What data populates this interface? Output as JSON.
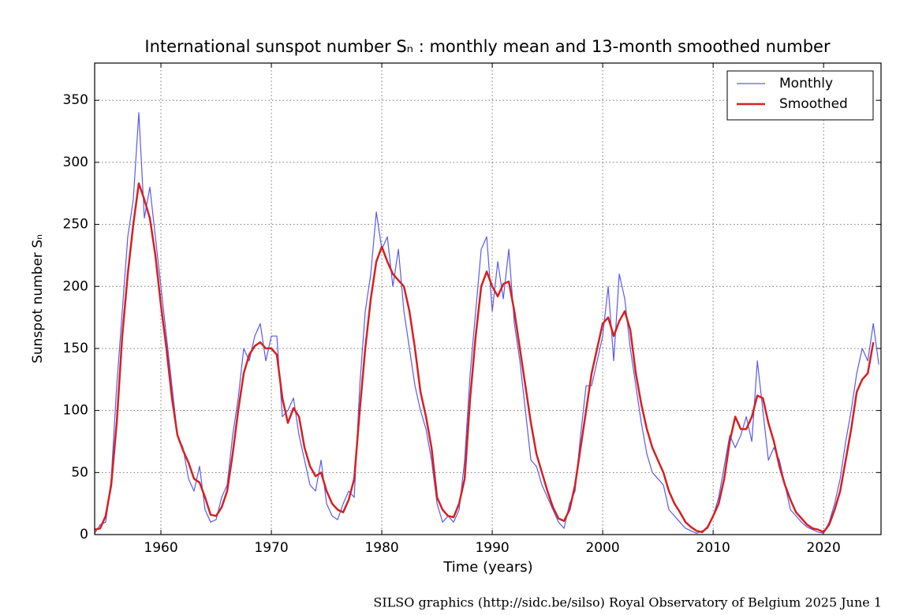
{
  "chart_data": {
    "type": "line",
    "title": "International sunspot number Sₙ : monthly mean and 13-month smoothed number",
    "xlabel": "Time (years)",
    "ylabel": "Sunspot number Sₙ",
    "footer": "SILSO graphics (http://sidc.be/silso)  Royal Observatory of Belgium  2025 June 1",
    "xlim": [
      1954,
      2025.2
    ],
    "ylim": [
      0,
      380
    ],
    "xticks": [
      1960,
      1970,
      1980,
      1990,
      2000,
      2010,
      2020
    ],
    "yticks": [
      0,
      50,
      100,
      150,
      200,
      250,
      300,
      350
    ],
    "grid": true,
    "legend": "upper right",
    "x": [
      1954,
      1954.5,
      1955,
      1955.5,
      1956,
      1956.5,
      1957,
      1957.5,
      1958,
      1958.5,
      1959,
      1959.5,
      1960,
      1960.5,
      1961,
      1961.5,
      1962,
      1962.5,
      1963,
      1963.5,
      1964,
      1964.5,
      1965,
      1965.5,
      1966,
      1966.5,
      1967,
      1967.5,
      1968,
      1968.5,
      1969,
      1969.5,
      1970,
      1970.5,
      1971,
      1971.5,
      1972,
      1972.5,
      1973,
      1973.5,
      1974,
      1974.5,
      1975,
      1975.5,
      1976,
      1976.5,
      1977,
      1977.5,
      1978,
      1978.5,
      1979,
      1979.5,
      1980,
      1980.5,
      1981,
      1981.5,
      1982,
      1982.5,
      1983,
      1983.5,
      1984,
      1984.5,
      1985,
      1985.5,
      1986,
      1986.5,
      1987,
      1987.5,
      1988,
      1988.5,
      1989,
      1989.5,
      1990,
      1990.5,
      1991,
      1991.5,
      1992,
      1992.5,
      1993,
      1993.5,
      1994,
      1994.5,
      1995,
      1995.5,
      1996,
      1996.5,
      1997,
      1997.5,
      1998,
      1998.5,
      1999,
      1999.5,
      2000,
      2000.5,
      2001,
      2001.5,
      2002,
      2002.5,
      2003,
      2003.5,
      2004,
      2004.5,
      2005,
      2005.5,
      2006,
      2006.5,
      2007,
      2007.5,
      2008,
      2008.5,
      2009,
      2009.5,
      2010,
      2010.5,
      2011,
      2011.5,
      2012,
      2012.5,
      2013,
      2013.5,
      2014,
      2014.5,
      2015,
      2015.5,
      2016,
      2016.5,
      2017,
      2017.5,
      2018,
      2018.5,
      2019,
      2019.5,
      2020,
      2020.5,
      2021,
      2021.5,
      2022,
      2022.5,
      2023,
      2023.5,
      2024,
      2024.5,
      2025
    ],
    "series": [
      {
        "name": "Monthly",
        "color": "#5a5aee",
        "width": 1.2,
        "values": [
          1,
          8,
          10,
          45,
          120,
          180,
          240,
          270,
          340,
          255,
          280,
          240,
          200,
          160,
          120,
          80,
          70,
          45,
          35,
          55,
          20,
          10,
          12,
          30,
          40,
          80,
          110,
          150,
          140,
          160,
          170,
          140,
          160,
          160,
          95,
          100,
          110,
          80,
          60,
          40,
          35,
          60,
          25,
          15,
          12,
          25,
          35,
          30,
          120,
          180,
          210,
          260,
          230,
          240,
          200,
          230,
          180,
          150,
          120,
          100,
          85,
          60,
          25,
          10,
          15,
          10,
          20,
          60,
          130,
          180,
          230,
          240,
          180,
          220,
          190,
          230,
          170,
          140,
          100,
          60,
          55,
          40,
          30,
          20,
          10,
          5,
          25,
          35,
          80,
          120,
          120,
          140,
          160,
          200,
          140,
          210,
          190,
          150,
          120,
          90,
          65,
          50,
          45,
          40,
          20,
          15,
          10,
          5,
          3,
          1,
          3,
          5,
          15,
          30,
          55,
          80,
          70,
          80,
          95,
          75,
          140,
          100,
          60,
          70,
          60,
          40,
          20,
          15,
          10,
          6,
          4,
          2,
          1,
          10,
          25,
          45,
          75,
          100,
          130,
          150,
          140,
          170,
          137
        ]
      },
      {
        "name": "Smoothed",
        "color": "#d62020",
        "width": 2.5,
        "values": [
          4,
          5,
          15,
          40,
          90,
          160,
          210,
          250,
          283,
          270,
          255,
          225,
          185,
          150,
          110,
          80,
          68,
          58,
          45,
          42,
          30,
          16,
          15,
          22,
          35,
          65,
          100,
          130,
          145,
          152,
          155,
          150,
          150,
          145,
          110,
          90,
          102,
          95,
          70,
          55,
          47,
          50,
          35,
          25,
          20,
          18,
          28,
          45,
          100,
          150,
          190,
          220,
          232,
          220,
          210,
          205,
          200,
          180,
          150,
          115,
          95,
          70,
          30,
          20,
          15,
          14,
          25,
          45,
          110,
          160,
          200,
          212,
          200,
          192,
          202,
          204,
          180,
          150,
          120,
          90,
          65,
          50,
          35,
          22,
          13,
          11,
          20,
          40,
          70,
          100,
          130,
          150,
          170,
          175,
          160,
          172,
          180,
          165,
          130,
          105,
          85,
          70,
          60,
          50,
          35,
          25,
          18,
          10,
          6,
          3,
          2,
          6,
          15,
          25,
          45,
          75,
          95,
          85,
          85,
          95,
          112,
          110,
          90,
          75,
          55,
          40,
          28,
          18,
          13,
          8,
          5,
          4,
          2,
          8,
          20,
          35,
          60,
          85,
          115,
          125,
          130,
          155,
          null
        ]
      }
    ]
  }
}
